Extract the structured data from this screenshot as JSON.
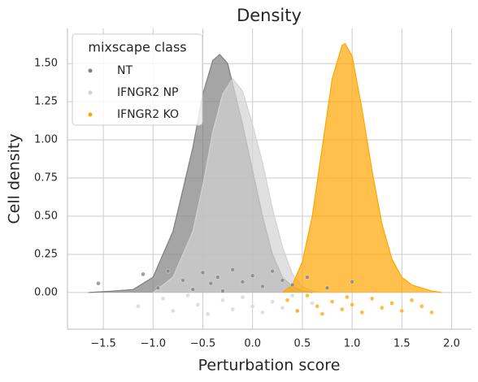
{
  "chart_data": {
    "type": "density",
    "title": "Density",
    "x_label": "Perturbation score",
    "y_label": "Cell density",
    "xlim": [
      -1.86,
      2.2
    ],
    "ylim": [
      -0.24,
      1.73
    ],
    "xticks": [
      {
        "value": -1.5,
        "label": "−1.5"
      },
      {
        "value": -1.0,
        "label": "−1.0"
      },
      {
        "value": -0.5,
        "label": "−0.5"
      },
      {
        "value": 0.0,
        "label": "0.0"
      },
      {
        "value": 0.5,
        "label": "0.5"
      },
      {
        "value": 1.0,
        "label": "1.0"
      },
      {
        "value": 1.5,
        "label": "1.5"
      },
      {
        "value": 2.0,
        "label": "2.0"
      }
    ],
    "yticks": [
      {
        "value": 0,
        "label": "0.00"
      },
      {
        "value": 0.25,
        "label": "0.25"
      },
      {
        "value": 0.5,
        "label": "0.50"
      },
      {
        "value": 0.75,
        "label": "0.75"
      },
      {
        "value": 1.0,
        "label": "1.00"
      },
      {
        "value": 1.25,
        "label": "1.25"
      },
      {
        "value": 1.5,
        "label": "1.50"
      }
    ],
    "grid": true,
    "legend_title": "mixscape class",
    "legend_loc": "upper left",
    "series": [
      {
        "name": "NT",
        "color": "#7f7f7f",
        "x": [
          -1.65,
          -1.4,
          -1.2,
          -1.0,
          -0.8,
          -0.6,
          -0.5,
          -0.4,
          -0.33,
          -0.25,
          -0.1,
          0.0,
          0.1,
          0.2,
          0.3,
          0.4,
          0.5,
          0.6
        ],
        "values": [
          0.0,
          0.01,
          0.02,
          0.1,
          0.4,
          0.95,
          1.3,
          1.52,
          1.56,
          1.5,
          1.1,
          0.8,
          0.5,
          0.25,
          0.1,
          0.04,
          0.01,
          0.0
        ],
        "points_x": [
          -1.55,
          -1.1,
          -0.95,
          -0.85,
          -0.7,
          -0.6,
          -0.5,
          -0.42,
          -0.35,
          -0.3,
          -0.2,
          -0.1,
          0.0,
          0.1,
          0.2,
          0.3,
          0.4,
          0.55,
          0.75,
          1.0
        ],
        "points_y": [
          0.06,
          0.12,
          0.03,
          0.14,
          0.08,
          0.02,
          0.13,
          0.06,
          0.1,
          0.01,
          0.15,
          0.07,
          0.11,
          0.04,
          0.14,
          0.08,
          0.05,
          0.1,
          0.03,
          0.07
        ]
      },
      {
        "name": "IFNGR2 NP",
        "color": "#d3d3d3",
        "x": [
          -1.0,
          -0.8,
          -0.6,
          -0.5,
          -0.4,
          -0.3,
          -0.2,
          -0.1,
          0.0,
          0.1,
          0.2,
          0.3,
          0.4,
          0.5,
          0.6,
          0.7
        ],
        "values": [
          0.0,
          0.1,
          0.4,
          0.7,
          1.05,
          1.3,
          1.4,
          1.32,
          1.1,
          0.85,
          0.55,
          0.3,
          0.12,
          0.04,
          0.01,
          0.0
        ],
        "points_x": [
          -1.15,
          -0.9,
          -0.8,
          -0.65,
          -0.55,
          -0.45,
          -0.3,
          -0.2,
          -0.1,
          0.0,
          0.1,
          0.2,
          0.3,
          0.4,
          0.45,
          0.6
        ],
        "points_y": [
          -0.09,
          -0.04,
          -0.12,
          -0.02,
          -0.08,
          -0.14,
          -0.05,
          -0.11,
          -0.03,
          -0.09,
          -0.13,
          -0.06,
          -0.1,
          -0.02,
          -0.12,
          -0.07
        ]
      },
      {
        "name": "IFNGR2 KO",
        "color": "#ffa500",
        "x": [
          0.3,
          0.4,
          0.5,
          0.6,
          0.7,
          0.8,
          0.9,
          0.93,
          1.0,
          1.1,
          1.2,
          1.3,
          1.4,
          1.5,
          1.6,
          1.7,
          1.8,
          1.9
        ],
        "values": [
          0.0,
          0.05,
          0.2,
          0.5,
          0.95,
          1.4,
          1.62,
          1.63,
          1.55,
          1.2,
          0.8,
          0.45,
          0.22,
          0.1,
          0.05,
          0.03,
          0.01,
          0.0
        ],
        "points_x": [
          0.35,
          0.45,
          0.55,
          0.65,
          0.7,
          0.8,
          0.9,
          0.95,
          1.0,
          1.1,
          1.2,
          1.3,
          1.4,
          1.5,
          1.6,
          1.7,
          1.8
        ],
        "points_y": [
          -0.05,
          -0.12,
          -0.02,
          -0.09,
          -0.14,
          -0.06,
          -0.11,
          -0.03,
          -0.08,
          -0.13,
          -0.04,
          -0.1,
          -0.07,
          -0.12,
          -0.05,
          -0.09,
          -0.13
        ]
      }
    ]
  }
}
